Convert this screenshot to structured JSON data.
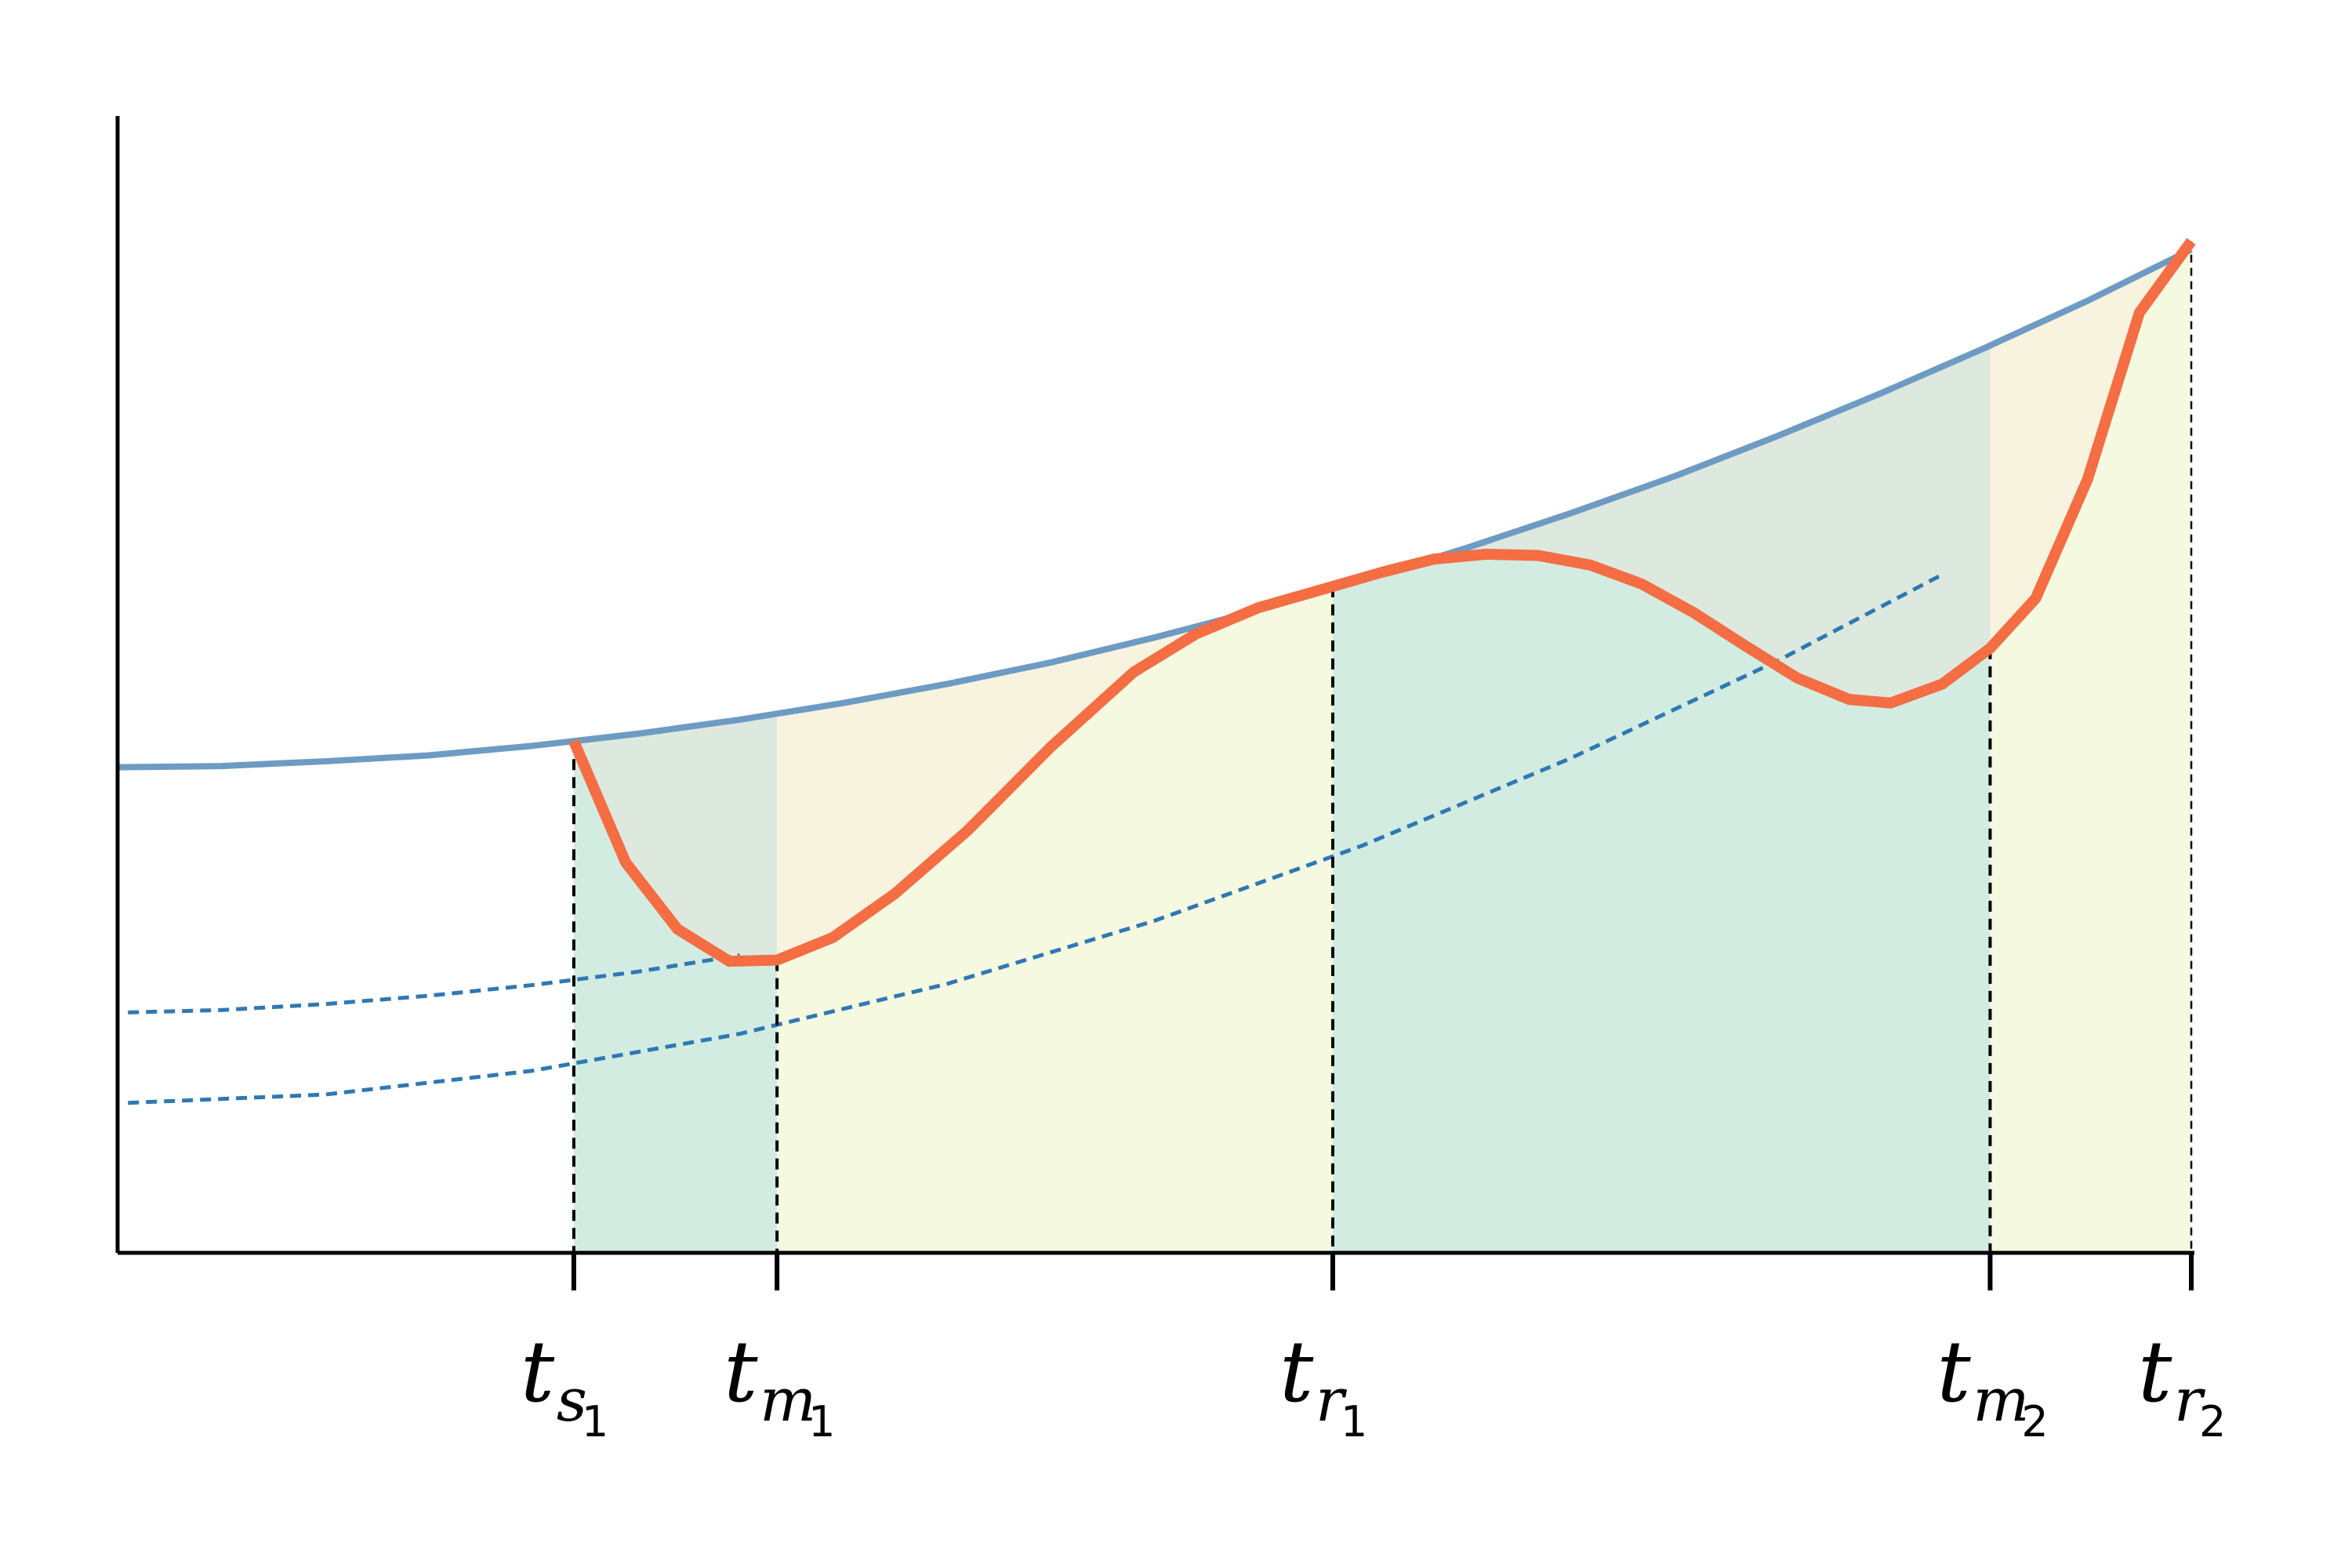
{
  "chart_data": {
    "type": "line",
    "title": "",
    "xlabel": "",
    "ylabel": "",
    "xlim": [
      0,
      10
    ],
    "ylim": [
      0,
      10
    ],
    "grid": false,
    "legend": "none",
    "x_ticks": [
      {
        "x": 2.2,
        "base": "t",
        "sub": "s",
        "subsub": "1"
      },
      {
        "x": 3.18,
        "base": "t",
        "sub": "m",
        "subsub": "1"
      },
      {
        "x": 5.86,
        "base": "t",
        "sub": "r",
        "subsub": "1"
      },
      {
        "x": 9.03,
        "base": "t",
        "sub": "m",
        "subsub": "2"
      },
      {
        "x": 10.0,
        "base": "t",
        "sub": "r",
        "subsub": "2"
      }
    ],
    "series": [
      {
        "kind": "envelope",
        "color": "#6d9bc3",
        "style": "solid",
        "x": [
          0,
          0.5,
          1,
          1.5,
          2,
          2.5,
          3,
          3.5,
          4,
          4.5,
          5,
          5.5,
          6,
          6.5,
          7,
          7.5,
          8,
          8.5,
          9,
          9.5,
          10
        ],
        "y": [
          4.08,
          4.09,
          4.13,
          4.18,
          4.26,
          4.36,
          4.48,
          4.62,
          4.78,
          4.96,
          5.17,
          5.4,
          5.65,
          5.92,
          6.21,
          6.52,
          6.86,
          7.22,
          7.6,
          8.0,
          8.43
        ]
      },
      {
        "kind": "dashed-1",
        "color": "#2e78b4",
        "style": "dashed",
        "x": [
          0.05,
          0.5,
          1,
          1.5,
          2,
          2.5,
          3.0
        ],
        "y": [
          2.02,
          2.04,
          2.09,
          2.16,
          2.25,
          2.36,
          2.5
        ]
      },
      {
        "kind": "dashed-2",
        "color": "#2e78b4",
        "style": "dashed",
        "x": [
          0.05,
          1,
          2,
          3,
          4,
          5,
          6,
          7,
          8,
          8.8
        ],
        "y": [
          1.26,
          1.33,
          1.53,
          1.84,
          2.26,
          2.79,
          3.42,
          4.15,
          4.97,
          5.7
        ]
      },
      {
        "kind": "signal",
        "color": "#f46d43",
        "style": "solid",
        "x": [
          2.2,
          2.45,
          2.7,
          2.95,
          3.18,
          3.45,
          3.75,
          4.1,
          4.5,
          4.9,
          5.2,
          5.5,
          5.86,
          6.1,
          6.35,
          6.6,
          6.85,
          7.1,
          7.35,
          7.6,
          7.85,
          8.1,
          8.35,
          8.55,
          8.8,
          9.03,
          9.25,
          9.5,
          9.75,
          10.0
        ],
        "y": [
          4.3,
          3.28,
          2.72,
          2.45,
          2.46,
          2.65,
          3.02,
          3.55,
          4.25,
          4.88,
          5.2,
          5.42,
          5.6,
          5.72,
          5.83,
          5.87,
          5.86,
          5.78,
          5.62,
          5.38,
          5.1,
          4.83,
          4.65,
          4.62,
          4.78,
          5.08,
          5.5,
          6.5,
          7.9,
          8.5
        ]
      }
    ],
    "regions": [
      {
        "x": [
          2.2,
          3.18
        ],
        "fill": "#d2ece2"
      },
      {
        "x": [
          3.18,
          5.86
        ],
        "fill": "#f5f9e0"
      },
      {
        "x": [
          5.86,
          9.03
        ],
        "fill": "#d2ece2"
      },
      {
        "x": [
          9.03,
          10.0
        ],
        "fill": "#f5f9e0"
      }
    ],
    "gap_regions": [
      {
        "x": [
          2.2,
          3.18
        ],
        "fill": "#dde8df"
      },
      {
        "x": [
          3.18,
          5.86
        ],
        "fill": "#f7f3df"
      },
      {
        "x": [
          5.86,
          9.03
        ],
        "fill": "#dde8df"
      },
      {
        "x": [
          9.03,
          10.0
        ],
        "fill": "#f7f3df"
      }
    ]
  }
}
